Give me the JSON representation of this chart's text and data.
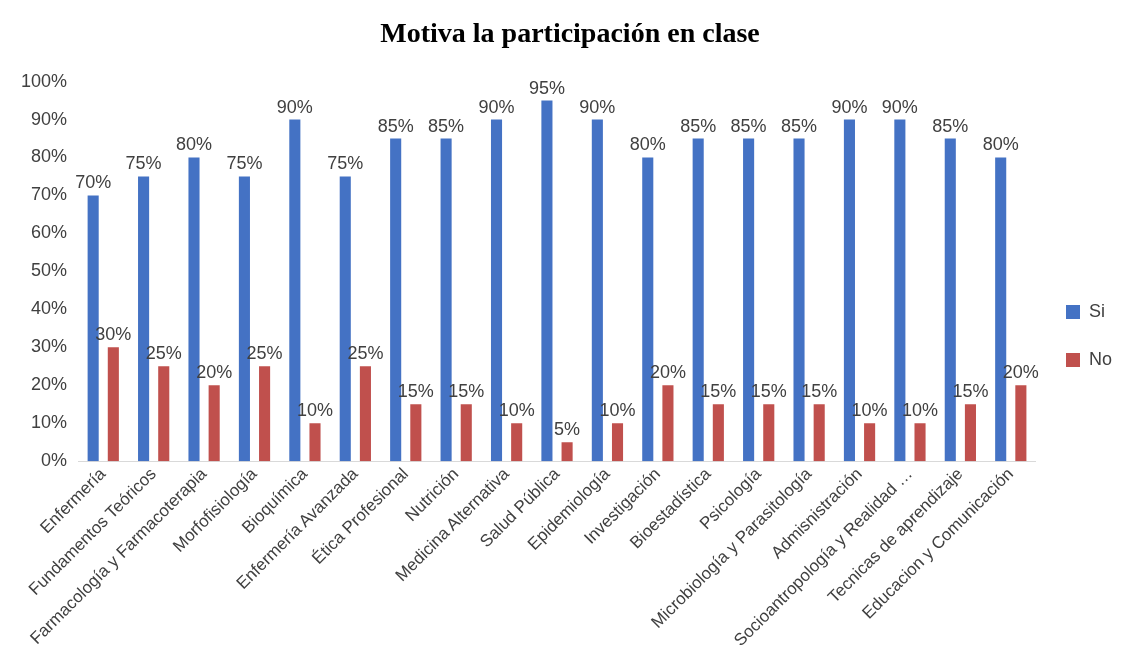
{
  "chart_data": {
    "type": "bar",
    "title": "Motiva la participación en clase",
    "categories": [
      "Enfermería",
      "Fundamentos Teóricos",
      "Farmacología y Farmacoterapia",
      "Morfofisiología",
      "Bioquímica",
      "Enfermería Avanzada",
      "Ética Profesional",
      "Nutrición",
      "Medicina Alternativa",
      "Salud Pública",
      "Epidemiología",
      "Investigación",
      "Bioestadística",
      "Psicología",
      "Microbiología y Parasitología",
      "Admisnistración",
      "Socioantropología y Realidad …",
      "Tecnicas de aprendizaje",
      "Educacion y Comunicación"
    ],
    "series": [
      {
        "name": "Si",
        "color": "#4472c4",
        "values": [
          70,
          75,
          80,
          75,
          90,
          75,
          85,
          85,
          90,
          95,
          90,
          80,
          85,
          85,
          85,
          90,
          90,
          85,
          80
        ],
        "value_labels": [
          "70%",
          "75%",
          "80%",
          "75%",
          "90%",
          "75%",
          "85%",
          "85%",
          "90%",
          "95%",
          "90%",
          "80%",
          "85%",
          "85%",
          "85%",
          "90%",
          "90%",
          "85%",
          "80%"
        ]
      },
      {
        "name": "No",
        "color": "#c0504d",
        "values": [
          30,
          25,
          20,
          25,
          10,
          25,
          15,
          15,
          10,
          5,
          10,
          20,
          15,
          15,
          15,
          10,
          10,
          15,
          20
        ],
        "value_labels": [
          "30%",
          "25%",
          "20%",
          "25%",
          "10%",
          "25%",
          "15%",
          "15%",
          "10%",
          "5%",
          "10%",
          "20%",
          "15%",
          "15%",
          "15%",
          "10%",
          "10%",
          "15%",
          "20%"
        ]
      }
    ],
    "ylim": [
      0,
      100
    ],
    "yticks": [
      {
        "value": 0,
        "label": "0%"
      },
      {
        "value": 10,
        "label": "10%"
      },
      {
        "value": 20,
        "label": "20%"
      },
      {
        "value": 30,
        "label": "30%"
      },
      {
        "value": 40,
        "label": "40%"
      },
      {
        "value": 50,
        "label": "50%"
      },
      {
        "value": 60,
        "label": "60%"
      },
      {
        "value": 70,
        "label": "70%"
      },
      {
        "value": 80,
        "label": "80%"
      },
      {
        "value": 90,
        "label": "90%"
      },
      {
        "value": 100,
        "label": "100%"
      }
    ],
    "grid": false,
    "legend": "right"
  }
}
